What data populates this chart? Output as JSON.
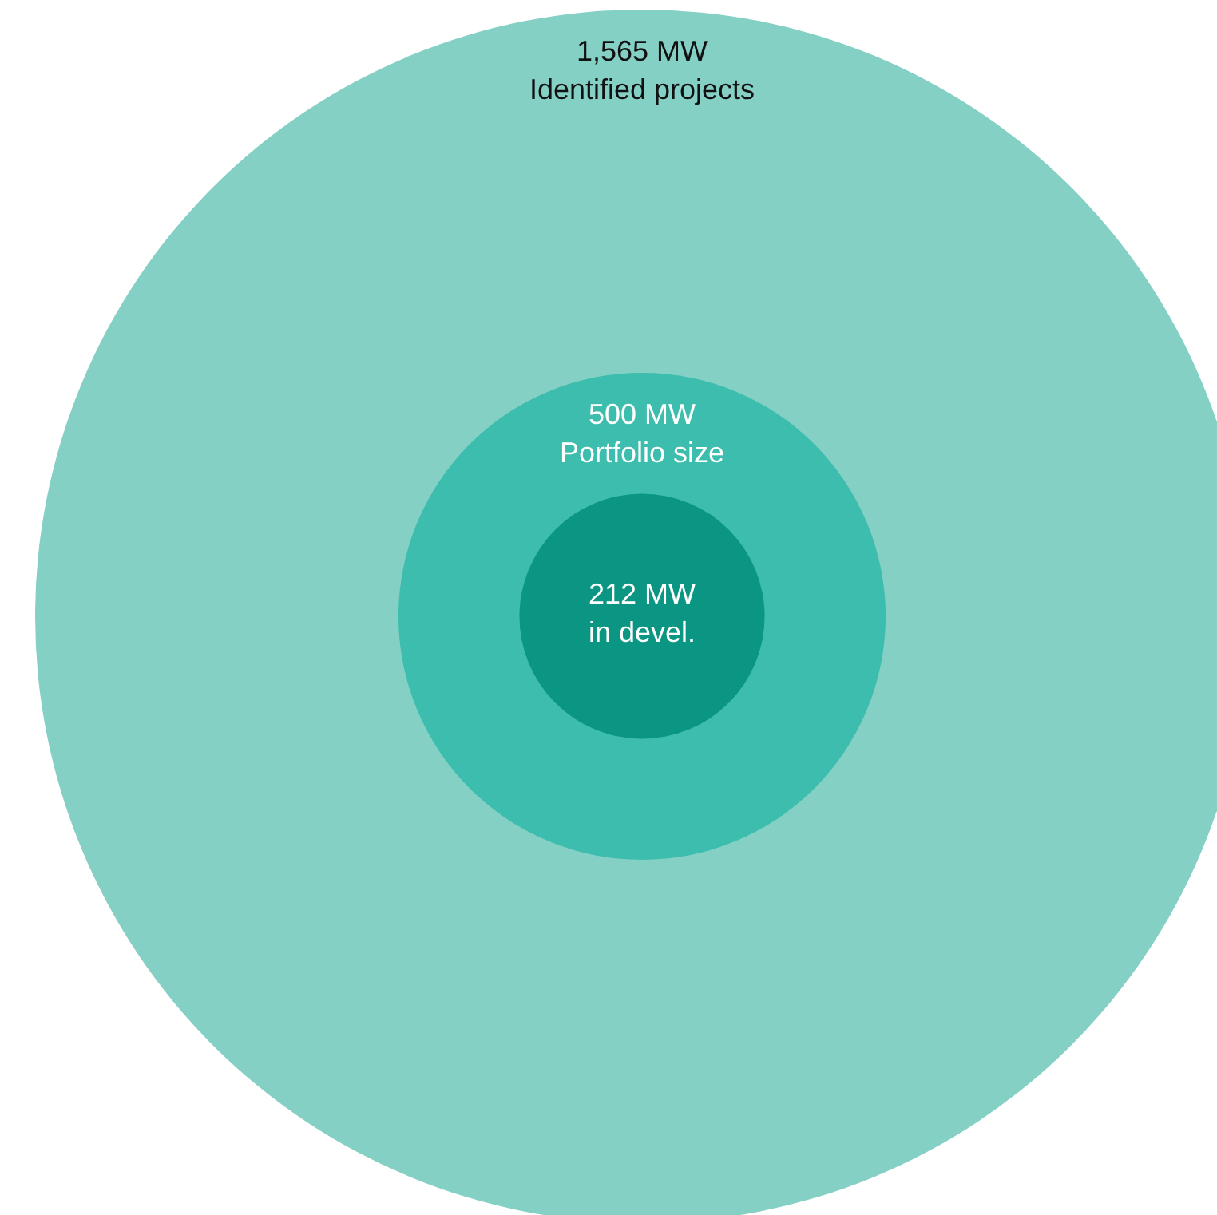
{
  "chart_data": {
    "type": "other",
    "categories": [
      "Identified projects",
      "Portfolio size",
      "in devel."
    ],
    "values": [
      1565,
      500,
      212
    ],
    "value_labels": [
      "1,565 MW",
      "500 MW",
      "212 MW"
    ],
    "colors": [
      "#85d0c5",
      "#3dbdad",
      "#0a9682"
    ]
  }
}
